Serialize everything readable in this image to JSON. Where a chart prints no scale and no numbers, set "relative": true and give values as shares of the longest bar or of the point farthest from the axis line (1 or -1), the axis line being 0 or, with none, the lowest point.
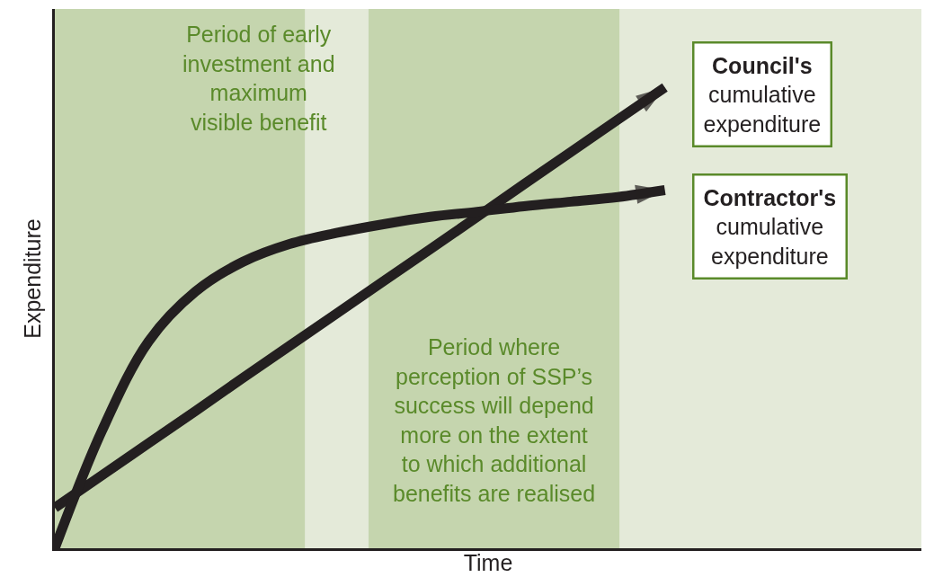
{
  "chart_data": {
    "type": "line",
    "relative": true,
    "xlabel": "Time",
    "ylabel": "Expenditure",
    "legend": "right",
    "grid": false,
    "categories": [
      null,
      null,
      null,
      null,
      null,
      null,
      null,
      null,
      null,
      null,
      null,
      null,
      null,
      null
    ],
    "series": [
      {
        "name": "Council's\ncumulative\nexpenditure",
        "color": "#231f20",
        "values": [
          0.088,
          0.158,
          0.228,
          0.298,
          0.369,
          0.439,
          0.509,
          0.579,
          0.649,
          0.719,
          0.79,
          0.86,
          0.93,
          1.0
        ]
      },
      {
        "name": "Contractor's\ncumulative\nexpenditure",
        "color": "#231f20",
        "values": [
          0,
          0.254,
          0.449,
          0.557,
          0.621,
          0.66,
          0.684,
          0.703,
          0.719,
          0.73,
          0.742,
          0.752,
          0.762,
          0.777
        ]
      }
    ],
    "annotations": [
      "Period of early\ninvestment and\nmaximum\nvisible benefit",
      "Period where\nperception of SSP’s\nsuccess will depend\nmore on the extent\nto which additional\nbenefits are realised"
    ]
  }
}
